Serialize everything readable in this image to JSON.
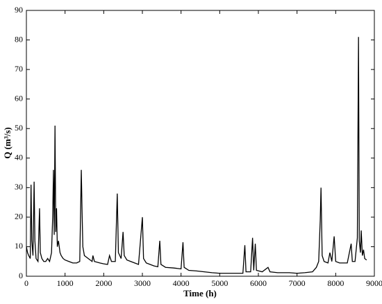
{
  "chart_data": {
    "type": "line",
    "xlabel": "Time (h)",
    "ylabel": "Q (m³/s)",
    "color": "#000000",
    "xlim": [
      0,
      9000
    ],
    "xticks": [
      0,
      1000,
      2000,
      3000,
      4000,
      5000,
      6000,
      7000,
      8000,
      9000
    ],
    "ylim": [
      0,
      90
    ],
    "yticks": [
      0,
      10,
      20,
      30,
      40,
      50,
      60,
      70,
      80,
      90
    ],
    "x": [
      0,
      30,
      60,
      100,
      120,
      140,
      170,
      200,
      220,
      250,
      300,
      340,
      360,
      400,
      450,
      500,
      550,
      600,
      650,
      680,
      700,
      720,
      740,
      760,
      780,
      800,
      830,
      870,
      900,
      950,
      1000,
      1100,
      1200,
      1300,
      1380,
      1420,
      1440,
      1460,
      1500,
      1600,
      1700,
      1720,
      1760,
      1900,
      2000,
      2100,
      2150,
      2200,
      2300,
      2350,
      2380,
      2450,
      2500,
      2530,
      2600,
      2700,
      2800,
      2900,
      3000,
      3030,
      3100,
      3200,
      3300,
      3400,
      3450,
      3480,
      3600,
      3800,
      4000,
      4050,
      4080,
      4200,
      4400,
      4600,
      4800,
      5000,
      5200,
      5400,
      5600,
      5650,
      5680,
      5800,
      5850,
      5880,
      5920,
      5950,
      6100,
      6250,
      6300,
      6500,
      6800,
      7000,
      7200,
      7400,
      7500,
      7560,
      7600,
      7620,
      7650,
      7700,
      7800,
      7850,
      7900,
      7960,
      8000,
      8100,
      8300,
      8400,
      8430,
      8500,
      8560,
      8590,
      8610,
      8640,
      8660,
      8690,
      8720,
      8750,
      8800
    ],
    "values": [
      10,
      8,
      7,
      6,
      31,
      12,
      7,
      32,
      12,
      6,
      5,
      23,
      8,
      6,
      5,
      5,
      6,
      5,
      8,
      20,
      36,
      14,
      51,
      15,
      23,
      10,
      12,
      8,
      7,
      6,
      5.5,
      5,
      4.5,
      4.5,
      5,
      36,
      22,
      10,
      7,
      6,
      5,
      7,
      5,
      4.5,
      4.2,
      4,
      7,
      5,
      5,
      28,
      8,
      6,
      15,
      7,
      5.5,
      5,
      4.5,
      4,
      20,
      6,
      4.5,
      4,
      3.5,
      3.2,
      12,
      4,
      3,
      2.8,
      2.5,
      11.5,
      3,
      2,
      1.8,
      1.5,
      1.2,
      1,
      1,
      1,
      1,
      10.5,
      1.5,
      1.5,
      13,
      2,
      11,
      2,
      1.5,
      3,
      1.5,
      1.2,
      1.2,
      1,
      1.2,
      1.5,
      3,
      5,
      19,
      30,
      7,
      5,
      4.5,
      8,
      5,
      13.5,
      5,
      4.5,
      4.5,
      11,
      5,
      5,
      13,
      81,
      12,
      8,
      15.5,
      7,
      9,
      6,
      5.5
    ]
  }
}
